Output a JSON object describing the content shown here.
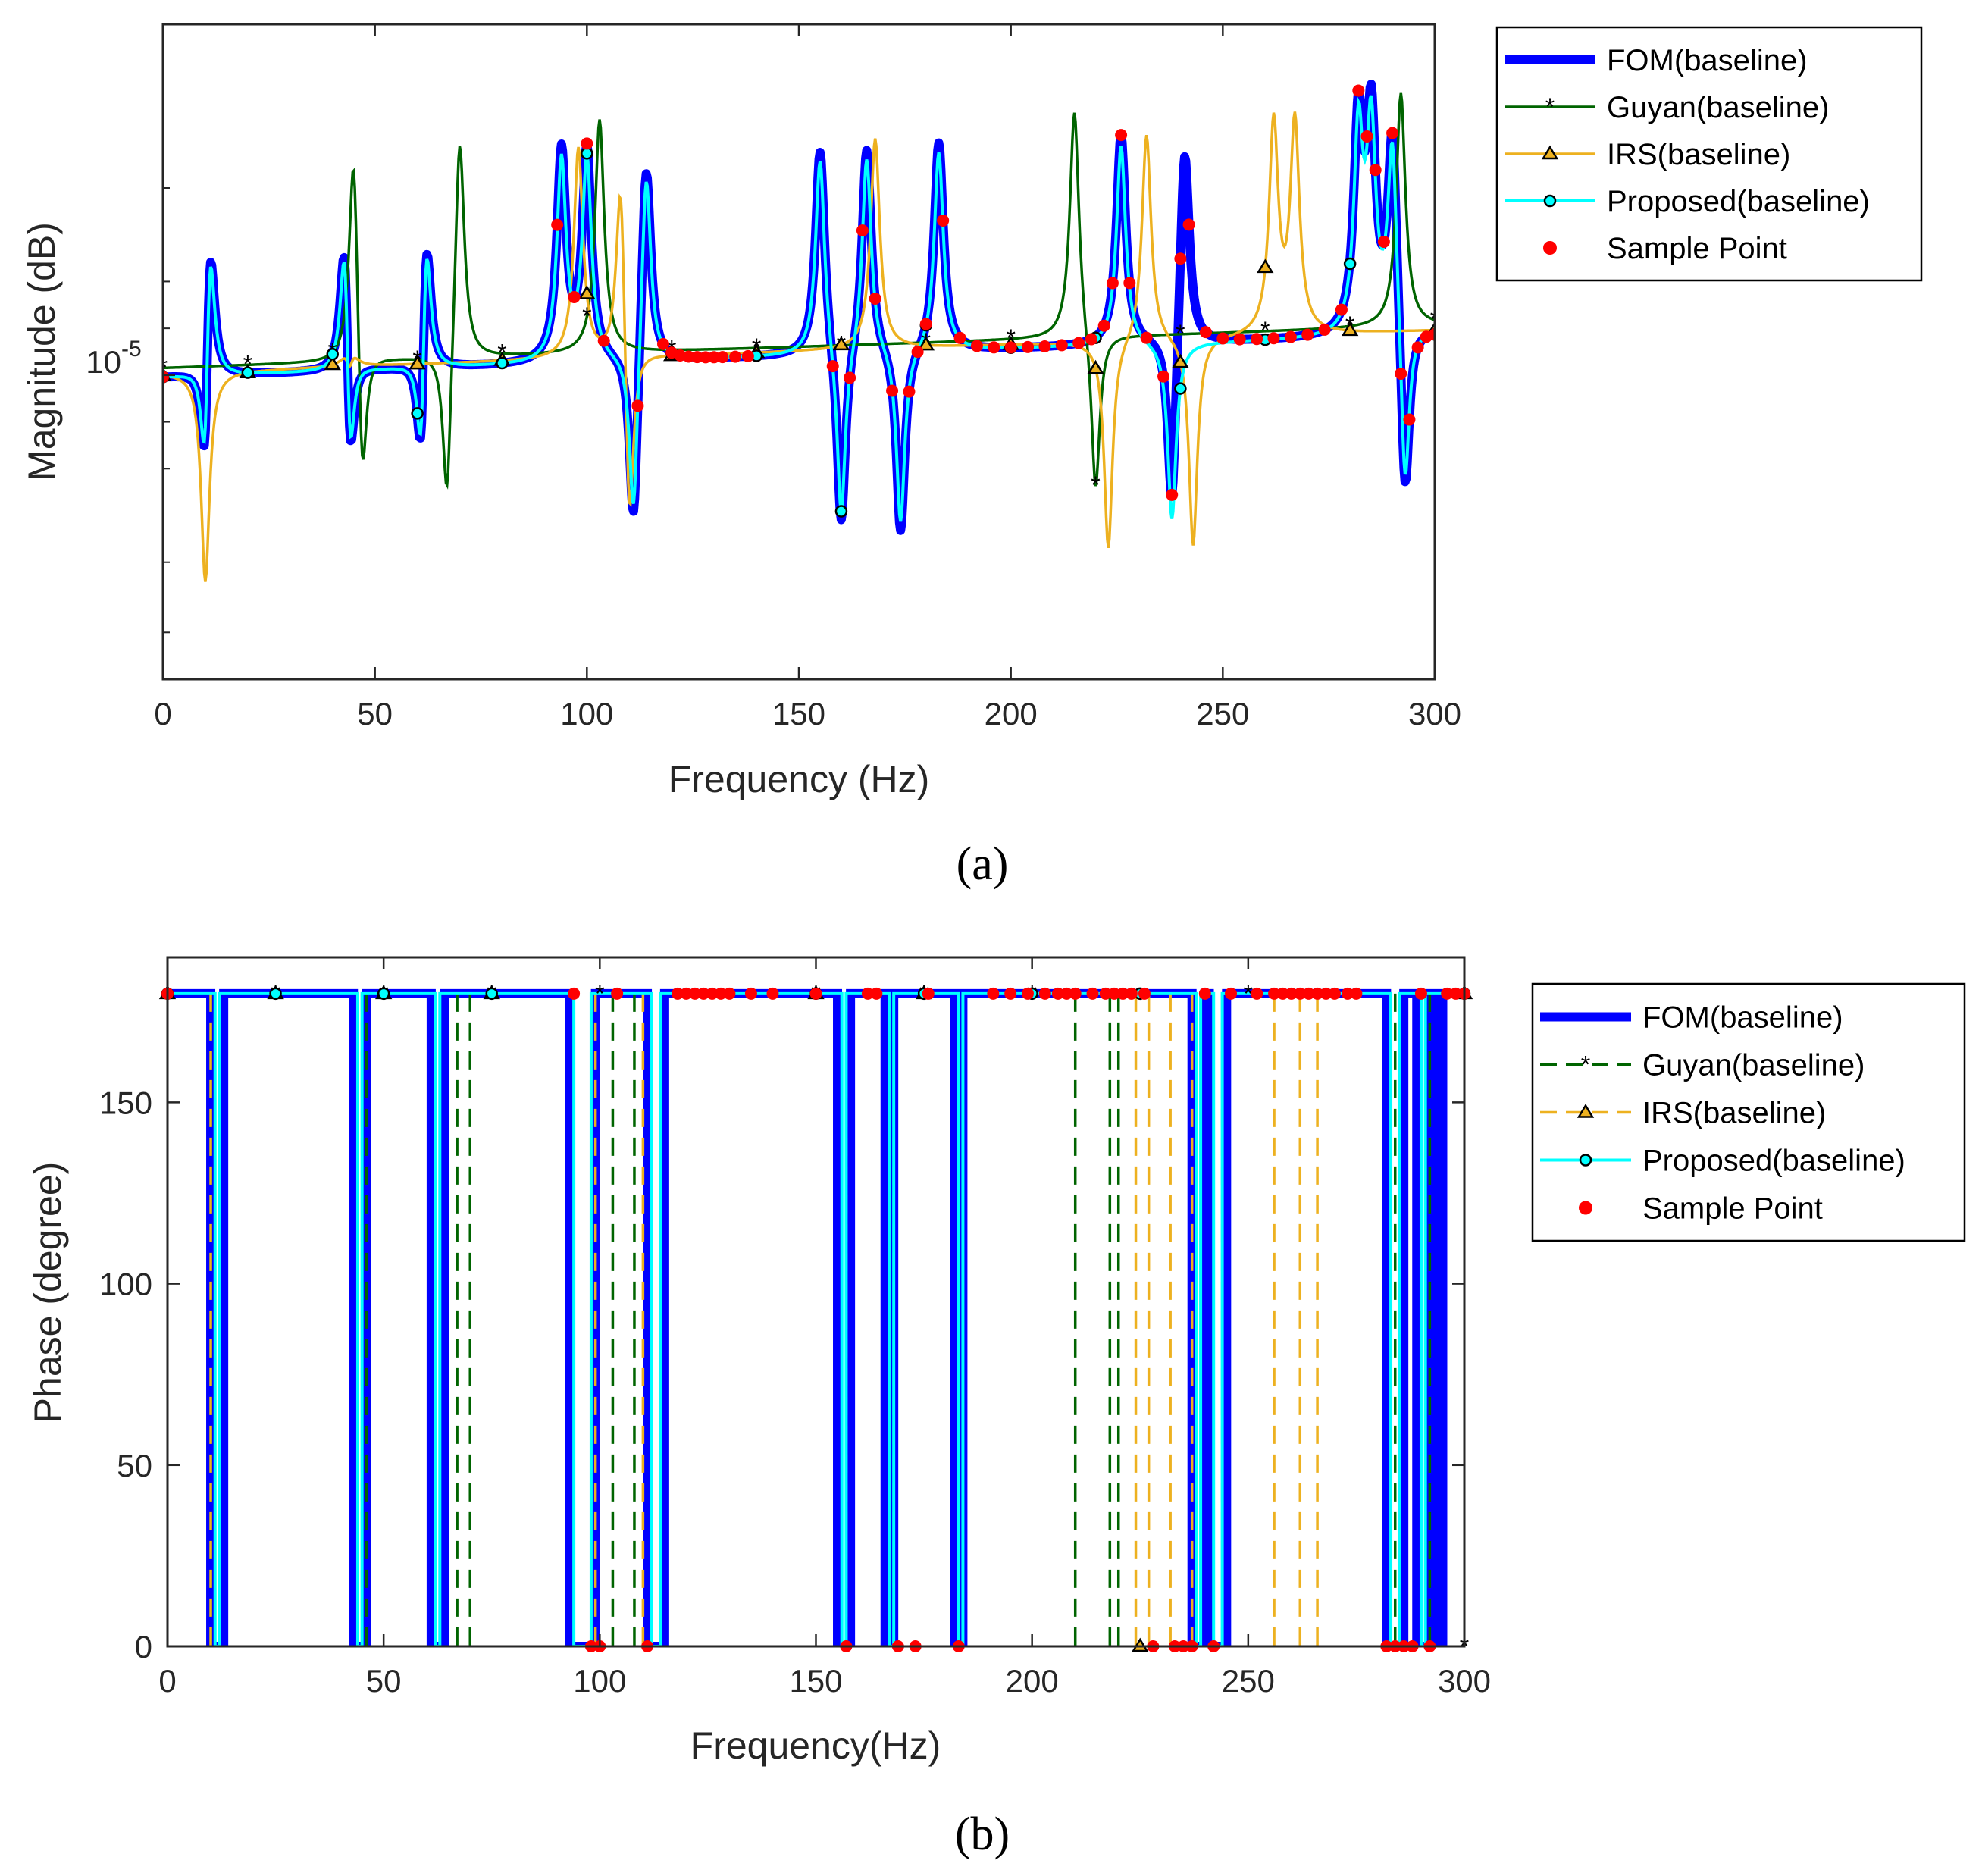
{
  "figure": {
    "caption_a": "(a)",
    "caption_b": "(b)"
  },
  "legend_entries": [
    "FOM(baseline)",
    "Guyan(baseline)",
    "IRS(baseline)",
    "Proposed(baseline)",
    "Sample Point"
  ],
  "colors": {
    "fom": "#0000ff",
    "guyan": "#006400",
    "irs": "#edb120",
    "proposed": "#00ffff",
    "sample": "#ff0000",
    "marker_edge": "#000000"
  },
  "chart_data": [
    {
      "id": "a",
      "type": "line",
      "title": "",
      "xlabel": "Frequency (Hz)",
      "ylabel": "Magnitude (dB)",
      "xlim": [
        0,
        300
      ],
      "xticks": [
        0,
        50,
        100,
        150,
        200,
        250,
        300
      ],
      "ylim_log10": [
        -5.65,
        -4.25
      ],
      "ytick_label": "10",
      "ytick_exponent": "-5",
      "legend_position": "outside-top-right",
      "baseline_log10": -4.96,
      "resonances_hz": [
        11,
        43,
        62,
        94,
        100,
        114,
        155,
        166,
        183,
        226,
        241,
        282,
        285,
        290
      ],
      "antiresonances_hz": [
        10,
        44,
        61,
        111,
        160,
        174,
        238,
        293
      ],
      "series": [
        {
          "name": "FOM(baseline)",
          "resonances_hz": [
            11,
            43,
            62,
            94,
            100,
            114,
            155,
            166,
            183,
            226,
            241,
            282,
            285,
            290
          ],
          "antiresonances_hz": [
            10,
            44,
            61,
            111,
            160,
            174,
            238,
            293
          ]
        },
        {
          "name": "Guyan(baseline)",
          "resonances_hz": [
            45,
            70,
            103,
            215,
            292
          ],
          "antiresonances_hz": [
            47,
            67,
            220
          ]
        },
        {
          "name": "IRS(baseline)",
          "resonances_hz": [
            44,
            98,
            108,
            168,
            232,
            262,
            267
          ],
          "antiresonances_hz": [
            10,
            44,
            110,
            223,
            243
          ]
        },
        {
          "name": "Proposed(baseline)",
          "resonances_hz": [
            11,
            43,
            62,
            94,
            100,
            114,
            155,
            166,
            183,
            226,
            282,
            285,
            290
          ],
          "antiresonances_hz": [
            10,
            44,
            61,
            111,
            160,
            174,
            238,
            293
          ]
        },
        {
          "name": "Sample Point",
          "x": [
            0,
            93,
            97,
            100,
            104,
            112,
            118,
            120,
            122,
            124,
            126,
            128,
            130,
            132,
            135,
            138,
            158,
            162,
            165,
            168,
            172,
            176,
            178,
            180,
            184,
            188,
            192,
            196,
            200,
            204,
            208,
            212,
            216,
            219,
            222,
            224,
            226,
            228,
            232,
            236,
            238,
            240,
            242,
            246,
            250,
            254,
            258,
            262,
            266,
            270,
            274,
            278,
            282,
            284,
            286,
            288,
            290,
            292,
            294,
            296,
            298,
            300
          ]
        }
      ]
    },
    {
      "id": "b",
      "type": "line",
      "title": "",
      "xlabel": "Frequency(Hz)",
      "ylabel": "Phase (degree)",
      "xlim": [
        0,
        300
      ],
      "ylim": [
        0,
        190
      ],
      "xticks": [
        0,
        50,
        100,
        150,
        200,
        250,
        300
      ],
      "yticks": [
        0,
        50,
        100,
        150
      ],
      "legend_position": "outside-top-right",
      "fom_low_intervals_hz": [
        [
          10,
          13
        ],
        [
          43,
          46
        ],
        [
          61,
          64
        ],
        [
          93,
          99
        ],
        [
          111,
          115
        ],
        [
          155,
          158
        ],
        [
          166,
          168
        ],
        [
          182,
          184
        ],
        [
          237,
          240
        ],
        [
          241,
          245
        ],
        [
          282,
          286
        ],
        [
          289,
          292
        ],
        [
          293,
          295
        ]
      ],
      "proposed_low_intervals_hz": [
        [
          11,
          12
        ],
        [
          44,
          45
        ],
        [
          62,
          63
        ],
        [
          94,
          98
        ],
        [
          112,
          114
        ],
        [
          156,
          157
        ],
        [
          167,
          168
        ],
        [
          183,
          184
        ],
        [
          238,
          239
        ],
        [
          242,
          244
        ],
        [
          283,
          285
        ],
        [
          290,
          291
        ]
      ],
      "guyan_drops_hz": [
        10,
        46,
        67,
        70,
        103,
        108,
        210,
        218,
        220,
        238,
        284,
        292
      ],
      "irs_drops_hz": [
        10,
        45,
        99,
        110,
        157,
        168,
        224,
        227,
        232,
        237,
        244,
        256,
        262,
        266
      ],
      "sample_points": [
        {
          "x": 0,
          "y": 180
        },
        {
          "x": 94,
          "y": 180
        },
        {
          "x": 98,
          "y": 0
        },
        {
          "x": 100,
          "y": 0
        },
        {
          "x": 104,
          "y": 180
        },
        {
          "x": 111,
          "y": 0
        },
        {
          "x": 118,
          "y": 180
        },
        {
          "x": 120,
          "y": 180
        },
        {
          "x": 122,
          "y": 180
        },
        {
          "x": 124,
          "y": 180
        },
        {
          "x": 126,
          "y": 180
        },
        {
          "x": 128,
          "y": 180
        },
        {
          "x": 130,
          "y": 180
        },
        {
          "x": 135,
          "y": 180
        },
        {
          "x": 140,
          "y": 180
        },
        {
          "x": 150,
          "y": 180
        },
        {
          "x": 157,
          "y": 0
        },
        {
          "x": 162,
          "y": 180
        },
        {
          "x": 164,
          "y": 180
        },
        {
          "x": 169,
          "y": 0
        },
        {
          "x": 173,
          "y": 0
        },
        {
          "x": 176,
          "y": 180
        },
        {
          "x": 183,
          "y": 0
        },
        {
          "x": 191,
          "y": 180
        },
        {
          "x": 195,
          "y": 180
        },
        {
          "x": 199,
          "y": 180
        },
        {
          "x": 203,
          "y": 180
        },
        {
          "x": 206,
          "y": 180
        },
        {
          "x": 208,
          "y": 180
        },
        {
          "x": 210,
          "y": 180
        },
        {
          "x": 214,
          "y": 180
        },
        {
          "x": 217,
          "y": 180
        },
        {
          "x": 219,
          "y": 180
        },
        {
          "x": 221,
          "y": 180
        },
        {
          "x": 223,
          "y": 180
        },
        {
          "x": 226,
          "y": 180
        },
        {
          "x": 228,
          "y": 0
        },
        {
          "x": 233,
          "y": 0
        },
        {
          "x": 235,
          "y": 0
        },
        {
          "x": 237,
          "y": 0
        },
        {
          "x": 240,
          "y": 180
        },
        {
          "x": 242,
          "y": 0
        },
        {
          "x": 246,
          "y": 180
        },
        {
          "x": 252,
          "y": 180
        },
        {
          "x": 256,
          "y": 180
        },
        {
          "x": 258,
          "y": 180
        },
        {
          "x": 260,
          "y": 180
        },
        {
          "x": 262,
          "y": 180
        },
        {
          "x": 264,
          "y": 180
        },
        {
          "x": 266,
          "y": 180
        },
        {
          "x": 268,
          "y": 180
        },
        {
          "x": 270,
          "y": 180
        },
        {
          "x": 273,
          "y": 180
        },
        {
          "x": 275,
          "y": 180
        },
        {
          "x": 282,
          "y": 0
        },
        {
          "x": 284,
          "y": 0
        },
        {
          "x": 286,
          "y": 0
        },
        {
          "x": 288,
          "y": 0
        },
        {
          "x": 290,
          "y": 180
        },
        {
          "x": 292,
          "y": 0
        },
        {
          "x": 296,
          "y": 180
        },
        {
          "x": 298,
          "y": 180
        },
        {
          "x": 300,
          "y": 180
        }
      ],
      "guyan_markers": [
        {
          "x": 25,
          "y": 180
        },
        {
          "x": 50,
          "y": 180
        },
        {
          "x": 75,
          "y": 180
        },
        {
          "x": 100,
          "y": 180
        },
        {
          "x": 150,
          "y": 180
        },
        {
          "x": 175,
          "y": 180
        },
        {
          "x": 200,
          "y": 180
        },
        {
          "x": 250,
          "y": 180
        },
        {
          "x": 300,
          "y": 0
        }
      ],
      "irs_markers": [
        {
          "x": 0,
          "y": 180
        },
        {
          "x": 25,
          "y": 180
        },
        {
          "x": 50,
          "y": 180
        },
        {
          "x": 75,
          "y": 180
        },
        {
          "x": 150,
          "y": 180
        },
        {
          "x": 175,
          "y": 180
        },
        {
          "x": 225,
          "y": 0
        },
        {
          "x": 300,
          "y": 180
        }
      ],
      "proposed_markers": [
        {
          "x": 0,
          "y": 180
        },
        {
          "x": 25,
          "y": 180
        },
        {
          "x": 50,
          "y": 180
        },
        {
          "x": 75,
          "y": 180
        },
        {
          "x": 150,
          "y": 180
        },
        {
          "x": 175,
          "y": 180
        },
        {
          "x": 200,
          "y": 180
        },
        {
          "x": 225,
          "y": 180
        },
        {
          "x": 300,
          "y": 180
        }
      ]
    }
  ]
}
